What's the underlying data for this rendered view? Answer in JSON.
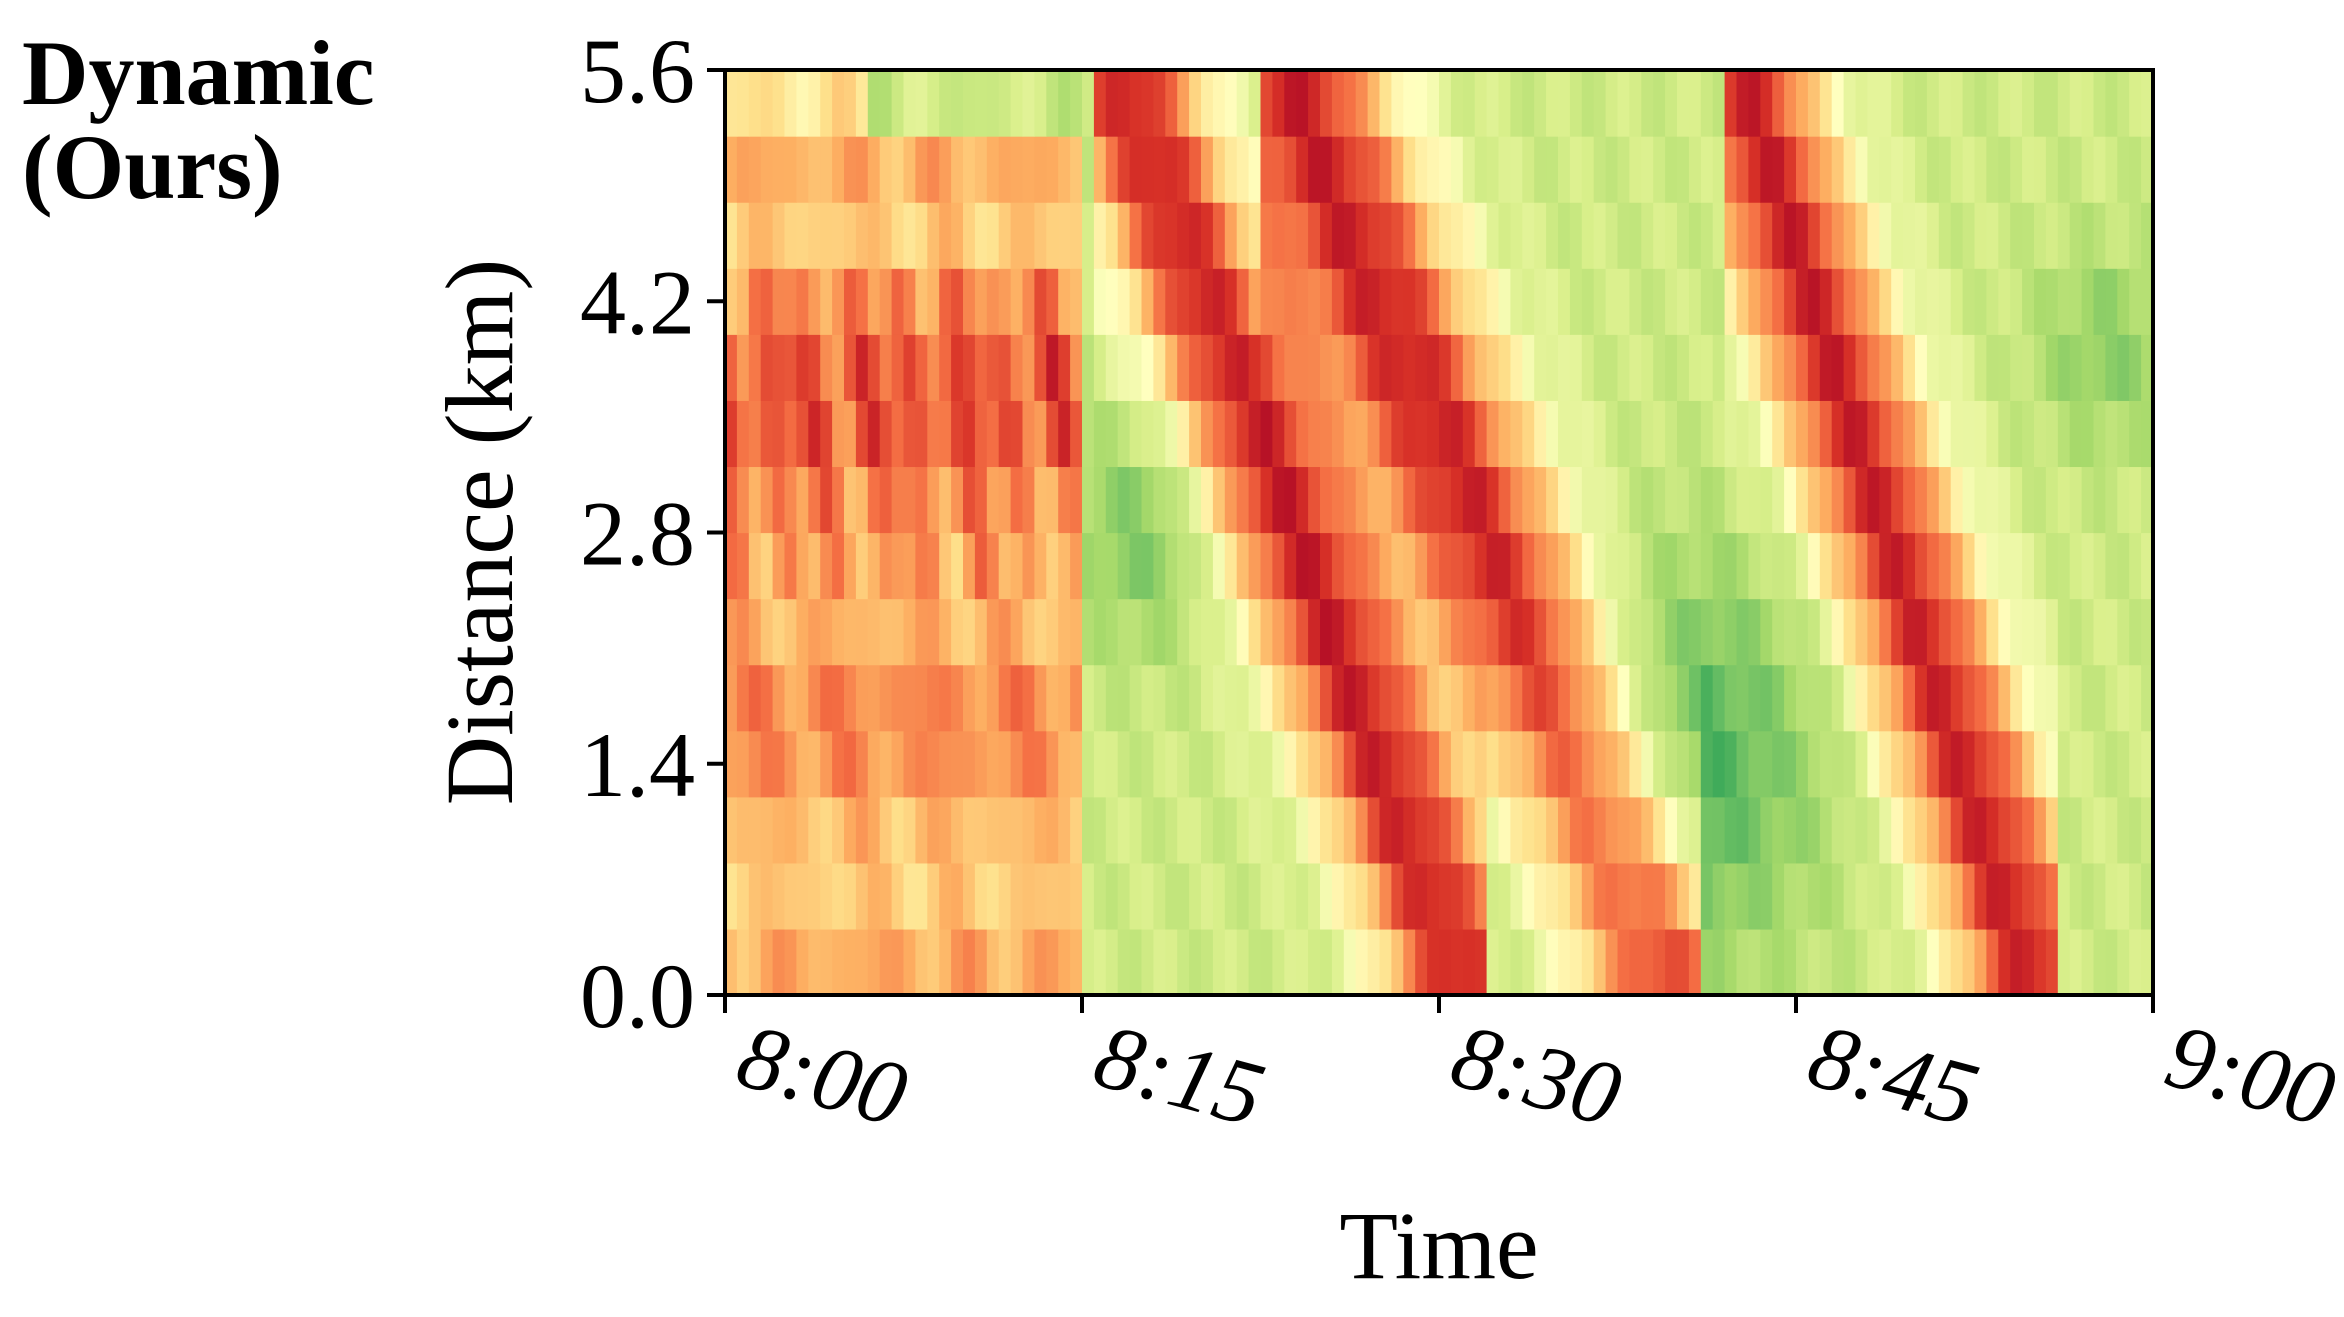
{
  "panel_label": {
    "line1": "Dynamic",
    "line2": "(Ours)"
  },
  "chart_data": {
    "type": "heatmap",
    "title": "",
    "xlabel": "Time",
    "ylabel": "Distance (km)",
    "x_range": [
      "8:00",
      "9:00"
    ],
    "xlim_minutes": [
      0,
      60
    ],
    "ylim": [
      0.0,
      5.6
    ],
    "x_ticks": [
      {
        "label": "8:00",
        "minute": 0
      },
      {
        "label": "8:15",
        "minute": 15
      },
      {
        "label": "8:30",
        "minute": 30
      },
      {
        "label": "8:45",
        "minute": 45
      },
      {
        "label": "9:00",
        "minute": 60
      }
    ],
    "y_ticks": [
      {
        "label": "0.0",
        "value": 0.0
      },
      {
        "label": "1.4",
        "value": 1.4
      },
      {
        "label": "2.8",
        "value": 2.8
      },
      {
        "label": "4.2",
        "value": 4.2
      },
      {
        "label": "5.6",
        "value": 5.6
      }
    ],
    "colormap": "RdYlGn",
    "colormap_stops": [
      "#a50026",
      "#d73027",
      "#f46d43",
      "#fdae61",
      "#fee08b",
      "#ffffbf",
      "#d9ef8b",
      "#a6d96a",
      "#66bd63",
      "#1a9850",
      "#006837"
    ],
    "segment_count": 14,
    "segment_length_km": 0.4,
    "congestion_waves": [
      {
        "name": "wave-1",
        "start_minute": 0.5,
        "start_distance_km": 5.6,
        "speed_km_per_min": 0.0,
        "duration_min": 0
      },
      {
        "name": "wave-2",
        "start_minute": 16.5,
        "start_distance_km": 5.6,
        "speed_km_per_min": -0.38,
        "duration_min": 14.5
      },
      {
        "name": "wave-3",
        "start_minute": 23.5,
        "start_distance_km": 5.6,
        "speed_km_per_min": -0.34,
        "duration_min": 16.5
      },
      {
        "name": "wave-4",
        "start_minute": 42.5,
        "start_distance_km": 5.6,
        "speed_km_per_min": -0.44,
        "duration_min": 12.8
      }
    ],
    "grid": false,
    "legend": "none"
  }
}
